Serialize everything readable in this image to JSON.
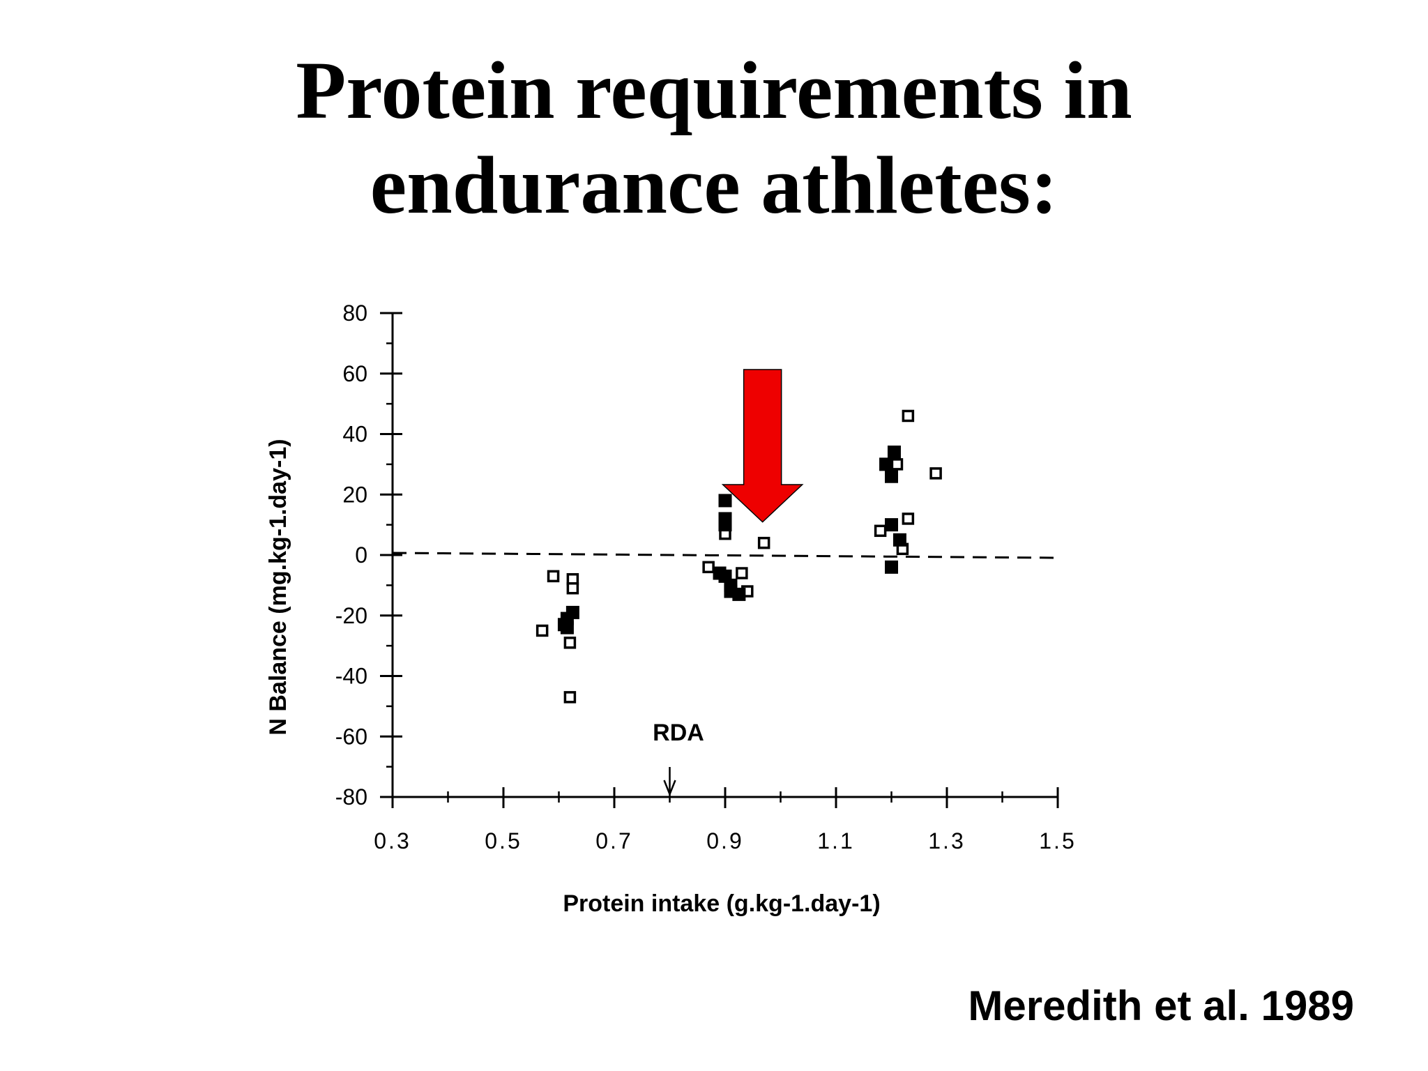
{
  "slide": {
    "title_line1": "Protein requirements in",
    "title_line2": "endurance athletes:",
    "citation": "Meredith et al. 1989"
  },
  "chart_data": {
    "type": "scatter",
    "xlabel": "Protein intake (g.kg-1.day-1)",
    "ylabel": "N Balance (mg.kg-1.day-1)",
    "xlim": [
      0.3,
      1.5
    ],
    "ylim": [
      -80,
      80
    ],
    "x_ticks": [
      "0.3",
      "0.5",
      "0.7",
      "0.9",
      "1.1",
      "1.3",
      "1.5"
    ],
    "y_ticks": [
      "80",
      "60",
      "40",
      "20",
      "0",
      "-20",
      "-40",
      "-60",
      "-80"
    ],
    "grid": false,
    "reference_line": {
      "y": 0,
      "style": "dashed"
    },
    "annotations": [
      {
        "text": "RDA",
        "x": 0.8,
        "type": "arrow-down-to-axis"
      },
      {
        "type": "red-arrow",
        "points_to": {
          "x": 0.97,
          "y": 4
        }
      }
    ],
    "series": [
      {
        "marker": "open-square",
        "points": [
          [
            0.59,
            -7
          ],
          [
            0.625,
            -8
          ],
          [
            0.625,
            -11
          ],
          [
            0.57,
            -25
          ],
          [
            0.62,
            -29
          ],
          [
            0.62,
            -47
          ],
          [
            0.87,
            -4
          ],
          [
            0.93,
            -6
          ],
          [
            0.94,
            -12
          ],
          [
            0.9,
            7
          ],
          [
            0.97,
            4
          ],
          [
            1.18,
            8
          ],
          [
            1.21,
            30
          ],
          [
            1.23,
            46
          ],
          [
            1.28,
            27
          ],
          [
            1.23,
            12
          ],
          [
            1.22,
            2
          ]
        ]
      },
      {
        "marker": "filled-square",
        "points": [
          [
            0.615,
            -21
          ],
          [
            0.625,
            -19
          ],
          [
            0.61,
            -23
          ],
          [
            0.615,
            -24
          ],
          [
            0.9,
            18
          ],
          [
            0.9,
            12
          ],
          [
            0.9,
            10
          ],
          [
            0.89,
            -6
          ],
          [
            0.9,
            -7
          ],
          [
            0.91,
            -10
          ],
          [
            0.91,
            -12
          ],
          [
            0.925,
            -13
          ],
          [
            1.19,
            30
          ],
          [
            1.2,
            26
          ],
          [
            1.205,
            34
          ],
          [
            1.2,
            10
          ],
          [
            1.2,
            -4
          ],
          [
            1.215,
            5
          ]
        ]
      }
    ]
  }
}
